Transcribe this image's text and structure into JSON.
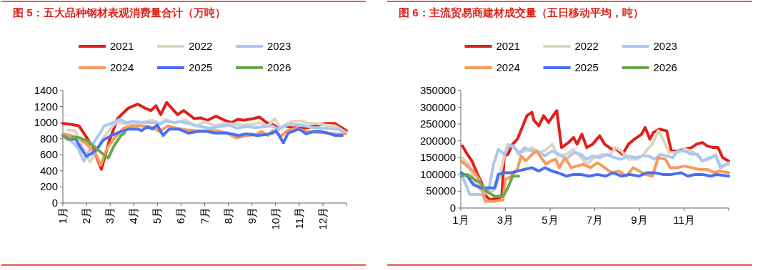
{
  "chart_data": [
    {
      "type": "line",
      "title": "图 5：五大品种钢材表观消费量合计（万吨）",
      "legend": "top",
      "grid": false,
      "xlim": [
        1,
        13
      ],
      "ylim": [
        0,
        1400
      ],
      "yticks": [
        0,
        200,
        400,
        600,
        800,
        1000,
        1200,
        1400
      ],
      "xticks": [
        {
          "value": 1,
          "label": "1月"
        },
        {
          "value": 2,
          "label": "2月"
        },
        {
          "value": 3,
          "label": "3月"
        },
        {
          "value": 4,
          "label": "4月"
        },
        {
          "value": 5,
          "label": "5月"
        },
        {
          "value": 6,
          "label": "6月"
        },
        {
          "value": 7,
          "label": "7月"
        },
        {
          "value": 8,
          "label": "8月"
        },
        {
          "value": 9,
          "label": "9月"
        },
        {
          "value": 10,
          "label": "10月"
        },
        {
          "value": 11,
          "label": "11月"
        },
        {
          "value": 12,
          "label": "12月"
        }
      ],
      "series": [
        {
          "name": "2021",
          "color": "#e0201b",
          "x": [
            1.0,
            1.33,
            1.68,
            2.04,
            2.34,
            2.63,
            2.95,
            3.31,
            3.77,
            4.17,
            4.48,
            4.73,
            4.94,
            5.14,
            5.39,
            5.85,
            6.11,
            6.56,
            6.82,
            7.12,
            7.48,
            7.84,
            8.14,
            8.4,
            8.65,
            9.06,
            9.31,
            9.62,
            9.92,
            10.18,
            10.38,
            10.68,
            11.09,
            11.4,
            11.7,
            12.11,
            12.52,
            12.72,
            13.0
          ],
          "values": [
            990,
            980,
            960,
            800,
            640,
            420,
            760,
            1050,
            1180,
            1230,
            1180,
            1150,
            1210,
            1100,
            1250,
            1100,
            1150,
            1050,
            1060,
            1030,
            1080,
            1030,
            1000,
            1040,
            1030,
            1050,
            1070,
            1000,
            970,
            920,
            960,
            940,
            930,
            940,
            960,
            990,
            990,
            950,
            900
          ]
        },
        {
          "name": "2022",
          "color": "#ddd5c0",
          "x": [
            1.22,
            1.53,
            1.83,
            2.14,
            2.44,
            2.75,
            3.26,
            3.67,
            4.17,
            4.78,
            5.09,
            5.34,
            5.7,
            6.21,
            6.62,
            7.02,
            7.43,
            7.84,
            8.24,
            8.65,
            9.06,
            9.31,
            9.67,
            9.97,
            10.23,
            10.48,
            10.79,
            11.09,
            11.4,
            11.7,
            12.11,
            12.52,
            12.97
          ],
          "values": [
            910,
            900,
            700,
            510,
            650,
            830,
            1010,
            980,
            990,
            1030,
            990,
            1040,
            1000,
            1030,
            960,
            1010,
            960,
            990,
            980,
            970,
            980,
            1000,
            960,
            1050,
            920,
            990,
            1020,
            1020,
            990,
            990,
            970,
            960,
            880
          ]
        },
        {
          "name": "2023",
          "color": "#a9c8f5",
          "x": [
            1.0,
            1.33,
            1.63,
            1.89,
            2.19,
            2.55,
            2.75,
            3.05,
            3.41,
            3.72,
            3.97,
            4.38,
            4.89,
            5.14,
            5.34,
            5.7,
            6.01,
            6.41,
            6.82,
            7.23,
            7.63,
            8.04,
            8.34,
            8.75,
            9.16,
            9.57,
            9.87,
            10.07,
            10.38,
            10.68,
            11.09,
            11.5,
            12.11,
            12.62,
            12.97
          ],
          "values": [
            830,
            780,
            690,
            520,
            700,
            860,
            960,
            990,
            1040,
            1000,
            1020,
            1000,
            1000,
            980,
            1020,
            1000,
            1010,
            980,
            950,
            930,
            950,
            970,
            930,
            950,
            940,
            950,
            960,
            920,
            960,
            980,
            970,
            940,
            930,
            920,
            880
          ]
        },
        {
          "name": "2024",
          "color": "#f79a5b",
          "x": [
            1.0,
            1.33,
            1.73,
            2.09,
            2.44,
            2.6,
            2.85,
            3.16,
            3.56,
            3.97,
            4.38,
            4.78,
            5.09,
            5.45,
            5.8,
            6.21,
            6.62,
            7.02,
            7.53,
            7.94,
            8.34,
            8.75,
            9.16,
            9.41,
            9.67,
            9.87,
            10.07,
            10.23,
            10.48,
            10.89,
            11.29,
            11.7,
            12.11,
            12.62,
            12.97
          ],
          "values": [
            860,
            840,
            800,
            710,
            580,
            470,
            670,
            800,
            930,
            960,
            960,
            940,
            890,
            960,
            930,
            910,
            900,
            900,
            900,
            870,
            810,
            840,
            850,
            890,
            840,
            900,
            870,
            830,
            900,
            930,
            890,
            880,
            870,
            860,
            860
          ]
        },
        {
          "name": "2025",
          "color": "#4a6ff0",
          "x": [
            1.0,
            1.33,
            1.53,
            1.73,
            1.99,
            2.24,
            2.44,
            2.7,
            3.05,
            3.46,
            3.82,
            4.17,
            4.33,
            4.58,
            4.78,
            4.99,
            5.24,
            5.5,
            5.9,
            6.31,
            6.72,
            7.12,
            7.43,
            7.94,
            8.45,
            8.75,
            9.06,
            9.21,
            9.57,
            9.87,
            10.02,
            10.33,
            10.53,
            10.99,
            11.29,
            11.6,
            11.91,
            12.21,
            12.52,
            12.82
          ],
          "values": [
            840,
            790,
            800,
            700,
            580,
            620,
            670,
            780,
            840,
            890,
            920,
            920,
            900,
            950,
            920,
            970,
            840,
            920,
            920,
            870,
            890,
            890,
            870,
            870,
            840,
            860,
            850,
            840,
            850,
            870,
            900,
            750,
            870,
            920,
            860,
            890,
            890,
            870,
            840,
            840
          ]
        },
        {
          "name": "2026",
          "color": "#6aa84f",
          "x": [
            1.0,
            1.22,
            1.48,
            1.73,
            2.04,
            2.34,
            2.65,
            2.92,
            3.16,
            3.46,
            3.61
          ],
          "values": [
            840,
            790,
            820,
            810,
            770,
            700,
            620,
            560,
            710,
            840,
            870
          ]
        }
      ]
    },
    {
      "type": "line",
      "title": "图 6：主流贸易商建材成交量（五日移动平均，吨）",
      "legend": "top",
      "grid": false,
      "xlim": [
        1,
        13
      ],
      "ylim": [
        0,
        350000
      ],
      "yticks": [
        0,
        50000,
        100000,
        150000,
        200000,
        250000,
        300000,
        350000
      ],
      "xticks": [
        {
          "value": 1,
          "label": "1月"
        },
        {
          "value": 3,
          "label": "3月"
        },
        {
          "value": 5,
          "label": "5月"
        },
        {
          "value": 7,
          "label": "7月"
        },
        {
          "value": 9,
          "label": "9月"
        },
        {
          "value": 11,
          "label": "11月"
        }
      ],
      "series": [
        {
          "name": "2021",
          "color": "#e0201b",
          "x": [
            1.07,
            1.29,
            1.5,
            1.72,
            1.93,
            2.14,
            2.3,
            2.73,
            2.84,
            2.95,
            3.11,
            3.32,
            3.53,
            3.75,
            3.96,
            4.18,
            4.28,
            4.5,
            4.71,
            4.93,
            5.19,
            5.3,
            5.51,
            5.83,
            6.05,
            6.21,
            6.42,
            6.64,
            6.9,
            7.22,
            7.44,
            7.76,
            7.97,
            8.24,
            8.51,
            8.78,
            9.1,
            9.26,
            9.47,
            9.63,
            9.9,
            10.22,
            10.43,
            10.7,
            11.02,
            11.34,
            11.56,
            11.82,
            12.04,
            12.3,
            12.52,
            12.73,
            13.0
          ],
          "values": [
            185000,
            160000,
            140000,
            105000,
            75000,
            35000,
            25000,
            30000,
            40000,
            155000,
            160000,
            190000,
            205000,
            240000,
            275000,
            285000,
            260000,
            245000,
            275000,
            255000,
            280000,
            290000,
            180000,
            195000,
            210000,
            190000,
            220000,
            180000,
            190000,
            215000,
            190000,
            175000,
            175000,
            160000,
            190000,
            205000,
            220000,
            240000,
            205000,
            225000,
            235000,
            230000,
            170000,
            170000,
            175000,
            180000,
            190000,
            195000,
            185000,
            180000,
            180000,
            150000,
            140000
          ]
        },
        {
          "name": "2022",
          "color": "#ddd5c0",
          "x": [
            1.07,
            1.34,
            1.61,
            1.88,
            2.2,
            2.52,
            2.73,
            2.95,
            3.11,
            3.37,
            3.64,
            3.91,
            4.18,
            4.5,
            4.76,
            5.09,
            5.35,
            5.73,
            6.05,
            6.32,
            6.64,
            6.96,
            7.33,
            7.65,
            7.92,
            8.19,
            8.51,
            8.83,
            9.15,
            9.36,
            9.58,
            9.84,
            10.06,
            10.33,
            10.7,
            11.02,
            11.34,
            11.61,
            11.82,
            12.14,
            12.41,
            12.63,
            13.0
          ],
          "values": [
            150000,
            130000,
            80000,
            55000,
            45000,
            55000,
            90000,
            155000,
            190000,
            180000,
            165000,
            170000,
            180000,
            165000,
            170000,
            190000,
            155000,
            160000,
            175000,
            155000,
            130000,
            150000,
            160000,
            155000,
            180000,
            170000,
            145000,
            145000,
            155000,
            175000,
            190000,
            230000,
            205000,
            165000,
            165000,
            175000,
            170000,
            155000,
            140000,
            145000,
            160000,
            125000,
            130000
          ]
        },
        {
          "name": "2023",
          "color": "#a9c8f5",
          "x": [
            1.02,
            1.4,
            1.77,
            2.04,
            2.25,
            2.47,
            2.68,
            2.95,
            3.16,
            3.37,
            3.59,
            3.86,
            4.12,
            4.44,
            4.76,
            5.09,
            5.41,
            5.73,
            6.05,
            6.37,
            6.64,
            6.9,
            7.22,
            7.55,
            7.87,
            8.19,
            8.45,
            8.83,
            9.15,
            9.42,
            9.68,
            9.95,
            10.22,
            10.49,
            10.7,
            11.02,
            11.34,
            11.61,
            11.82,
            12.14,
            12.41,
            12.63,
            13.0
          ],
          "values": [
            105000,
            40000,
            40000,
            40000,
            55000,
            130000,
            175000,
            160000,
            185000,
            185000,
            160000,
            180000,
            170000,
            170000,
            155000,
            170000,
            160000,
            145000,
            165000,
            160000,
            145000,
            155000,
            150000,
            160000,
            150000,
            145000,
            155000,
            150000,
            155000,
            155000,
            145000,
            160000,
            155000,
            150000,
            170000,
            170000,
            160000,
            160000,
            140000,
            150000,
            155000,
            120000,
            135000
          ]
        },
        {
          "name": "2024",
          "color": "#f79a5b",
          "x": [
            1.02,
            1.29,
            1.56,
            1.82,
            2.09,
            2.52,
            2.89,
            3.0,
            3.27,
            3.53,
            3.7,
            3.91,
            4.12,
            4.39,
            4.6,
            4.82,
            5.03,
            5.25,
            5.41,
            5.67,
            5.94,
            6.21,
            6.48,
            6.8,
            7.12,
            7.44,
            7.76,
            8.08,
            8.4,
            8.72,
            8.99,
            9.26,
            9.58,
            9.84,
            10.17,
            10.38,
            10.7,
            11.02,
            11.34,
            11.66,
            12.04,
            12.36,
            12.57,
            13.0
          ],
          "values": [
            140000,
            125000,
            110000,
            85000,
            20000,
            20000,
            25000,
            85000,
            95000,
            115000,
            155000,
            140000,
            155000,
            170000,
            150000,
            130000,
            140000,
            145000,
            120000,
            150000,
            120000,
            125000,
            130000,
            120000,
            135000,
            120000,
            105000,
            110000,
            95000,
            120000,
            110000,
            100000,
            95000,
            150000,
            145000,
            120000,
            120000,
            125000,
            120000,
            115000,
            115000,
            105000,
            110000,
            105000
          ]
        },
        {
          "name": "2025",
          "color": "#4a6ff0",
          "x": [
            1.02,
            1.29,
            1.56,
            1.88,
            2.2,
            2.52,
            2.68,
            2.95,
            3.27,
            3.53,
            3.86,
            4.18,
            4.5,
            4.76,
            5.09,
            5.35,
            5.73,
            6.05,
            6.37,
            6.74,
            7.12,
            7.49,
            7.81,
            8.19,
            8.56,
            8.99,
            9.31,
            9.68,
            10.06,
            10.43,
            10.86,
            11.18,
            11.5,
            11.82,
            12.2,
            12.47,
            13.0
          ],
          "values": [
            105000,
            95000,
            70000,
            60000,
            60000,
            60000,
            100000,
            105000,
            105000,
            110000,
            115000,
            120000,
            110000,
            120000,
            110000,
            105000,
            95000,
            100000,
            100000,
            95000,
            100000,
            95000,
            105000,
            95000,
            100000,
            95000,
            105000,
            105000,
            100000,
            100000,
            105000,
            95000,
            100000,
            100000,
            95000,
            100000,
            95000
          ]
        },
        {
          "name": "2026",
          "color": "#6aa84f",
          "x": [
            1.02,
            1.29,
            1.61,
            1.88,
            2.14,
            2.52,
            2.89,
            3.11,
            3.32,
            3.59
          ],
          "values": [
            95000,
            100000,
            85000,
            75000,
            50000,
            35000,
            35000,
            60000,
            95000,
            95000
          ]
        }
      ]
    }
  ]
}
